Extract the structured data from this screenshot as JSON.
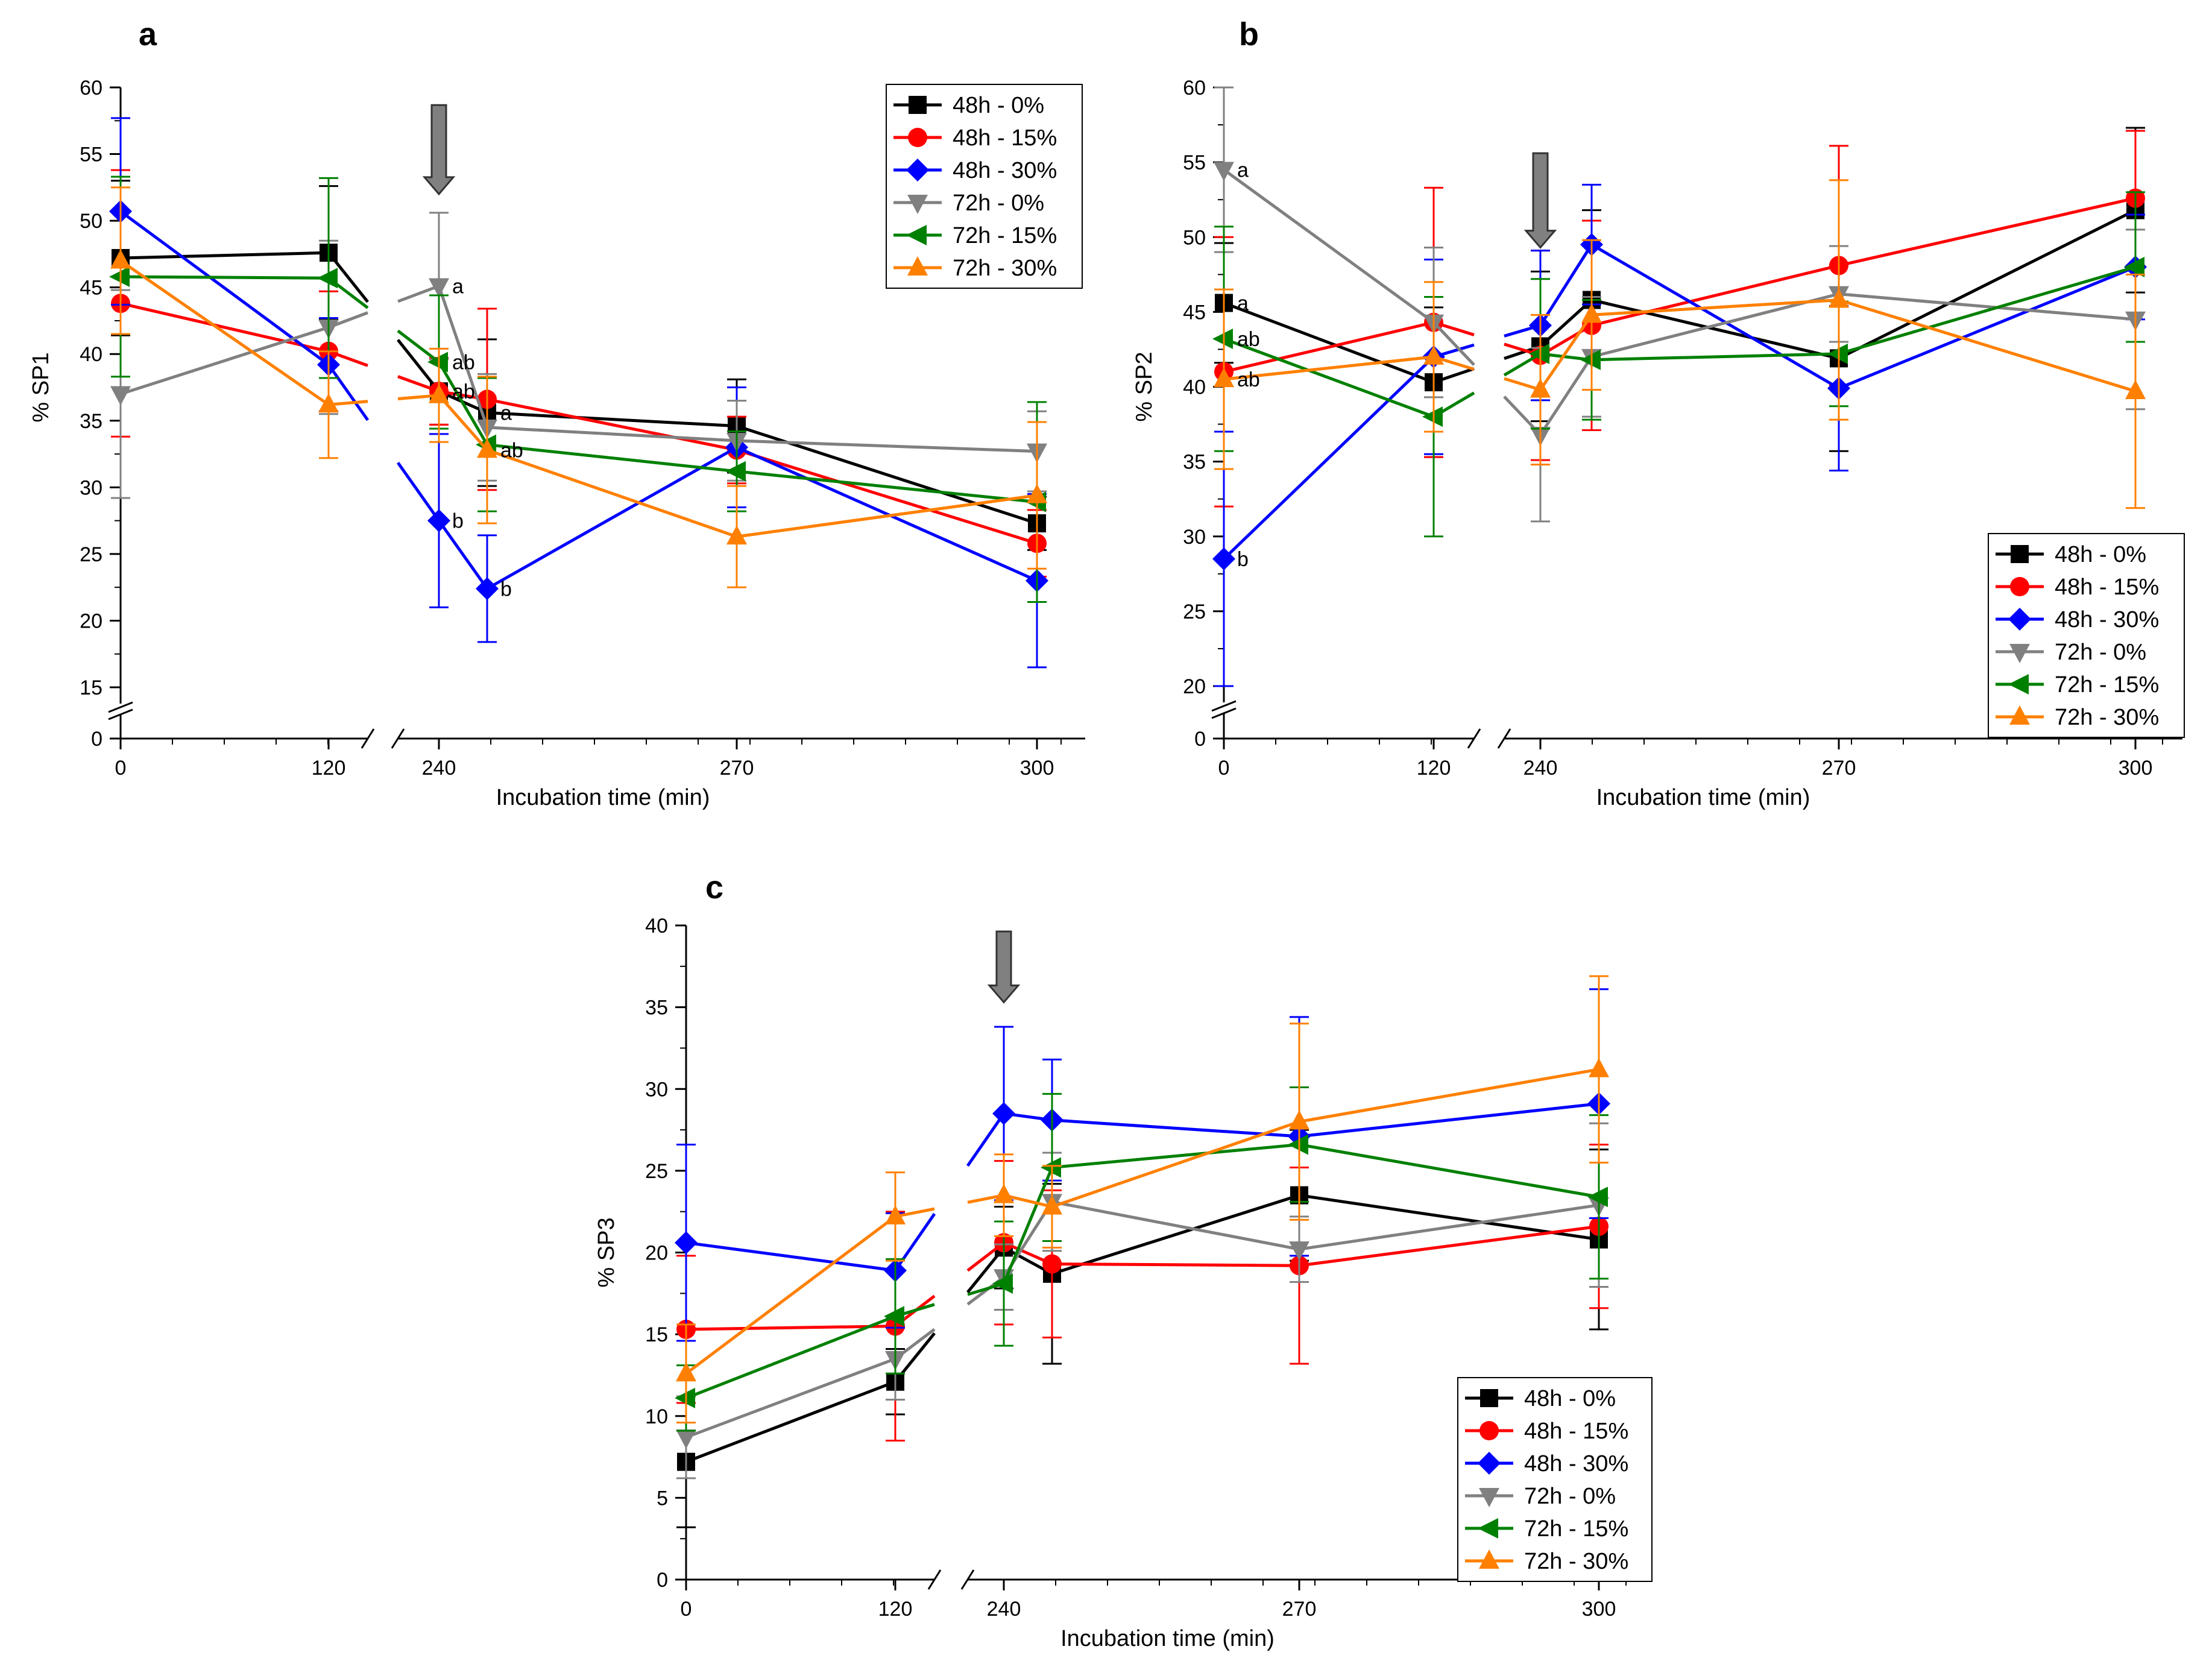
{
  "colors": {
    "s48_0": "#000000",
    "s48_15": "#ff0000",
    "s48_30": "#0000ff",
    "s72_0": "#808080",
    "s72_15": "#008000",
    "s72_30": "#ff8000",
    "arrow": "#808080"
  },
  "chart_data": [
    {
      "panel": "a",
      "type": "line",
      "ylabel": "% SP1",
      "xlabel": "Incubation time (min)",
      "ylim": [
        15,
        60
      ],
      "yticks": [
        15,
        20,
        25,
        30,
        35,
        40,
        45,
        50,
        55,
        60
      ],
      "y_axis_break": "0",
      "x_tick_labels": [
        "0",
        "120",
        "240",
        "270",
        "300"
      ],
      "legend_position": "top-right",
      "arrow_at": "240",
      "series": [
        {
          "name": "48h - 0%",
          "marker": "square",
          "color_key": "s48_0",
          "points": [
            [
              0,
              47.2,
              5.8
            ],
            [
              120,
              47.6,
              5.0
            ],
            [
              240,
              37.2,
              2.5
            ],
            [
              255,
              35.6,
              5.5
            ],
            [
              270,
              34.6,
              3.5
            ],
            [
              300,
              27.3,
              2.0
            ]
          ]
        },
        {
          "name": "48h - 15%",
          "marker": "circle",
          "color_key": "s48_15",
          "points": [
            [
              0,
              43.8,
              10.0
            ],
            [
              120,
              40.2,
              4.5
            ],
            [
              240,
              37.2,
              2.5
            ],
            [
              255,
              36.6,
              6.8
            ],
            [
              270,
              32.8,
              2.5
            ],
            [
              300,
              25.8,
              2.5
            ]
          ]
        },
        {
          "name": "48h - 30%",
          "marker": "diamond",
          "color_key": "s48_30",
          "points": [
            [
              0,
              50.7,
              7.0
            ],
            [
              120,
              39.2,
              3.5
            ],
            [
              240,
              27.5,
              6.5
            ],
            [
              255,
              22.4,
              4.0
            ],
            [
              270,
              33.0,
              4.5
            ],
            [
              300,
              23.0,
              6.5
            ]
          ]
        },
        {
          "name": "72h - 0%",
          "marker": "triangle-down",
          "color_key": "s72_0",
          "points": [
            [
              0,
              37.0,
              7.8
            ],
            [
              120,
              42.0,
              6.5
            ],
            [
              240,
              45.1,
              5.5
            ],
            [
              255,
              34.5,
              4.0
            ],
            [
              270,
              33.5,
              3.0
            ],
            [
              300,
              32.7,
              3.0
            ]
          ]
        },
        {
          "name": "72h - 15%",
          "marker": "triangle-left",
          "color_key": "s72_15",
          "points": [
            [
              0,
              45.8,
              7.5
            ],
            [
              120,
              45.7,
              7.5
            ],
            [
              240,
              39.4,
              5.0
            ],
            [
              255,
              33.2,
              5.0
            ],
            [
              270,
              31.2,
              3.0
            ],
            [
              300,
              28.9,
              7.5
            ]
          ]
        },
        {
          "name": "72h - 30%",
          "marker": "triangle-up",
          "color_key": "s72_30",
          "points": [
            [
              0,
              47.0,
              5.5
            ],
            [
              120,
              36.2,
              4.0
            ],
            [
              240,
              36.9,
              3.5
            ],
            [
              255,
              32.8,
              5.5
            ],
            [
              270,
              26.3,
              3.8
            ],
            [
              300,
              29.4,
              5.5
            ]
          ]
        }
      ],
      "annotations": [
        {
          "text": "a",
          "x": 240,
          "y": 45.1
        },
        {
          "text": "ab",
          "x": 240,
          "y": 39.4
        },
        {
          "text": "ab",
          "x": 240,
          "y": 37.2
        },
        {
          "text": "b",
          "x": 240,
          "y": 27.5
        },
        {
          "text": "a",
          "x": 255,
          "y": 35.6
        },
        {
          "text": "ab",
          "x": 255,
          "y": 32.8
        },
        {
          "text": "b",
          "x": 255,
          "y": 22.4
        }
      ]
    },
    {
      "panel": "b",
      "type": "line",
      "ylabel": "% SP2",
      "xlabel": "Incubation time (min)",
      "ylim": [
        20,
        60
      ],
      "yticks": [
        20,
        25,
        30,
        35,
        40,
        45,
        50,
        55,
        60
      ],
      "y_axis_break": "0",
      "x_tick_labels": [
        "0",
        "120",
        "240",
        "270",
        "300"
      ],
      "legend_position": "bottom-right",
      "arrow_at": "240",
      "series": [
        {
          "name": "48h - 0%",
          "marker": "square",
          "color_key": "s48_0",
          "points": [
            [
              0,
              45.6,
              4.0
            ],
            [
              120,
              40.3,
              5.0
            ],
            [
              240,
              42.7,
              5.0
            ],
            [
              255,
              45.8,
              6.0
            ],
            [
              270,
              41.9,
              6.2
            ],
            [
              300,
              51.8,
              5.5
            ]
          ]
        },
        {
          "name": "48h - 15%",
          "marker": "circle",
          "color_key": "s48_15",
          "points": [
            [
              0,
              41.0,
              9.0
            ],
            [
              120,
              44.3,
              9.0
            ],
            [
              240,
              42.1,
              7.0
            ],
            [
              255,
              44.1,
              7.0
            ],
            [
              270,
              48.1,
              8.0
            ],
            [
              300,
              52.6,
              4.5
            ]
          ]
        },
        {
          "name": "48h - 30%",
          "marker": "diamond",
          "color_key": "s48_30",
          "points": [
            [
              0,
              28.5,
              8.5
            ],
            [
              120,
              42.0,
              6.5
            ],
            [
              240,
              44.1,
              5.0
            ],
            [
              255,
              49.5,
              4.0
            ],
            [
              270,
              39.9,
              5.5
            ],
            [
              300,
              48.0,
              3.5
            ]
          ]
        },
        {
          "name": "72h - 0%",
          "marker": "triangle-down",
          "color_key": "s72_0",
          "points": [
            [
              0,
              54.5,
              5.5
            ],
            [
              120,
              44.3,
              5.0
            ],
            [
              240,
              36.8,
              5.8
            ],
            [
              255,
              42.0,
              4.0
            ],
            [
              270,
              46.2,
              3.2
            ],
            [
              300,
              44.5,
              6.0
            ]
          ]
        },
        {
          "name": "72h - 15%",
          "marker": "triangle-left",
          "color_key": "s72_15",
          "points": [
            [
              0,
              43.2,
              7.5
            ],
            [
              120,
              38.0,
              8.0
            ],
            [
              240,
              42.2,
              5.0
            ],
            [
              255,
              41.8,
              4.0
            ],
            [
              270,
              42.2,
              3.5
            ],
            [
              300,
              48.0,
              5.0
            ]
          ]
        },
        {
          "name": "72h - 30%",
          "marker": "triangle-up",
          "color_key": "s72_30",
          "points": [
            [
              0,
              40.5,
              6.0
            ],
            [
              120,
              42.0,
              5.0
            ],
            [
              240,
              39.8,
              5.0
            ],
            [
              255,
              44.8,
              5.0
            ],
            [
              270,
              45.8,
              8.0
            ],
            [
              300,
              39.7,
              7.8
            ]
          ]
        }
      ],
      "annotations": [
        {
          "text": "a",
          "x": 0,
          "y": 54.5
        },
        {
          "text": "a",
          "x": 0,
          "y": 45.6
        },
        {
          "text": "ab",
          "x": 0,
          "y": 43.2
        },
        {
          "text": "ab",
          "x": 0,
          "y": 40.5
        },
        {
          "text": "b",
          "x": 0,
          "y": 28.5
        }
      ]
    },
    {
      "panel": "c",
      "type": "line",
      "ylabel": "% SP3",
      "xlabel": "Incubation time (min)",
      "ylim": [
        0,
        40
      ],
      "yticks": [
        0,
        5,
        10,
        15,
        20,
        25,
        30,
        35,
        40
      ],
      "y_axis_break": "",
      "x_tick_labels": [
        "0",
        "120",
        "240",
        "270",
        "300"
      ],
      "legend_position": "bottom-right",
      "arrow_at": "240",
      "series": [
        {
          "name": "48h - 0%",
          "marker": "square",
          "color_key": "s48_0",
          "points": [
            [
              0,
              7.2,
              4.0
            ],
            [
              120,
              12.1,
              2.0
            ],
            [
              240,
              20.3,
              2.5
            ],
            [
              255,
              18.7,
              5.5
            ],
            [
              270,
              23.5,
              4.0
            ],
            [
              300,
              20.8,
              5.5
            ]
          ]
        },
        {
          "name": "48h - 15%",
          "marker": "circle",
          "color_key": "s48_15",
          "points": [
            [
              0,
              15.3,
              4.5
            ],
            [
              120,
              15.5,
              7.0
            ],
            [
              240,
              20.6,
              5.0
            ],
            [
              255,
              19.3,
              4.5
            ],
            [
              270,
              19.2,
              6.0
            ],
            [
              300,
              21.6,
              5.0
            ]
          ]
        },
        {
          "name": "48h - 30%",
          "marker": "diamond",
          "color_key": "s48_30",
          "points": [
            [
              0,
              20.6,
              6.0
            ],
            [
              120,
              18.9,
              3.5
            ],
            [
              240,
              28.5,
              5.3
            ],
            [
              255,
              28.1,
              3.7
            ],
            [
              270,
              27.1,
              7.3
            ],
            [
              300,
              29.1,
              7.0
            ]
          ]
        },
        {
          "name": "72h - 0%",
          "marker": "triangle-down",
          "color_key": "s72_0",
          "points": [
            [
              0,
              8.7,
              2.5
            ],
            [
              120,
              13.5,
              2.5
            ],
            [
              240,
              18.5,
              2.0
            ],
            [
              255,
              23.1,
              3.0
            ],
            [
              270,
              20.2,
              2.0
            ],
            [
              300,
              22.9,
              5.0
            ]
          ]
        },
        {
          "name": "72h - 15%",
          "marker": "triangle-left",
          "color_key": "s72_15",
          "points": [
            [
              0,
              11.1,
              2.0
            ],
            [
              120,
              16.1,
              3.5
            ],
            [
              240,
              18.1,
              3.8
            ],
            [
              255,
              25.2,
              4.5
            ],
            [
              270,
              26.6,
              3.5
            ],
            [
              300,
              23.4,
              5.0
            ]
          ]
        },
        {
          "name": "72h - 30%",
          "marker": "triangle-up",
          "color_key": "s72_30",
          "points": [
            [
              0,
              12.6,
              3.0
            ],
            [
              120,
              22.2,
              2.7
            ],
            [
              240,
              23.5,
              2.5
            ],
            [
              255,
              22.8,
              2.5
            ],
            [
              270,
              28.0,
              6.0
            ],
            [
              300,
              31.2,
              5.7
            ]
          ]
        }
      ],
      "annotations": []
    }
  ]
}
